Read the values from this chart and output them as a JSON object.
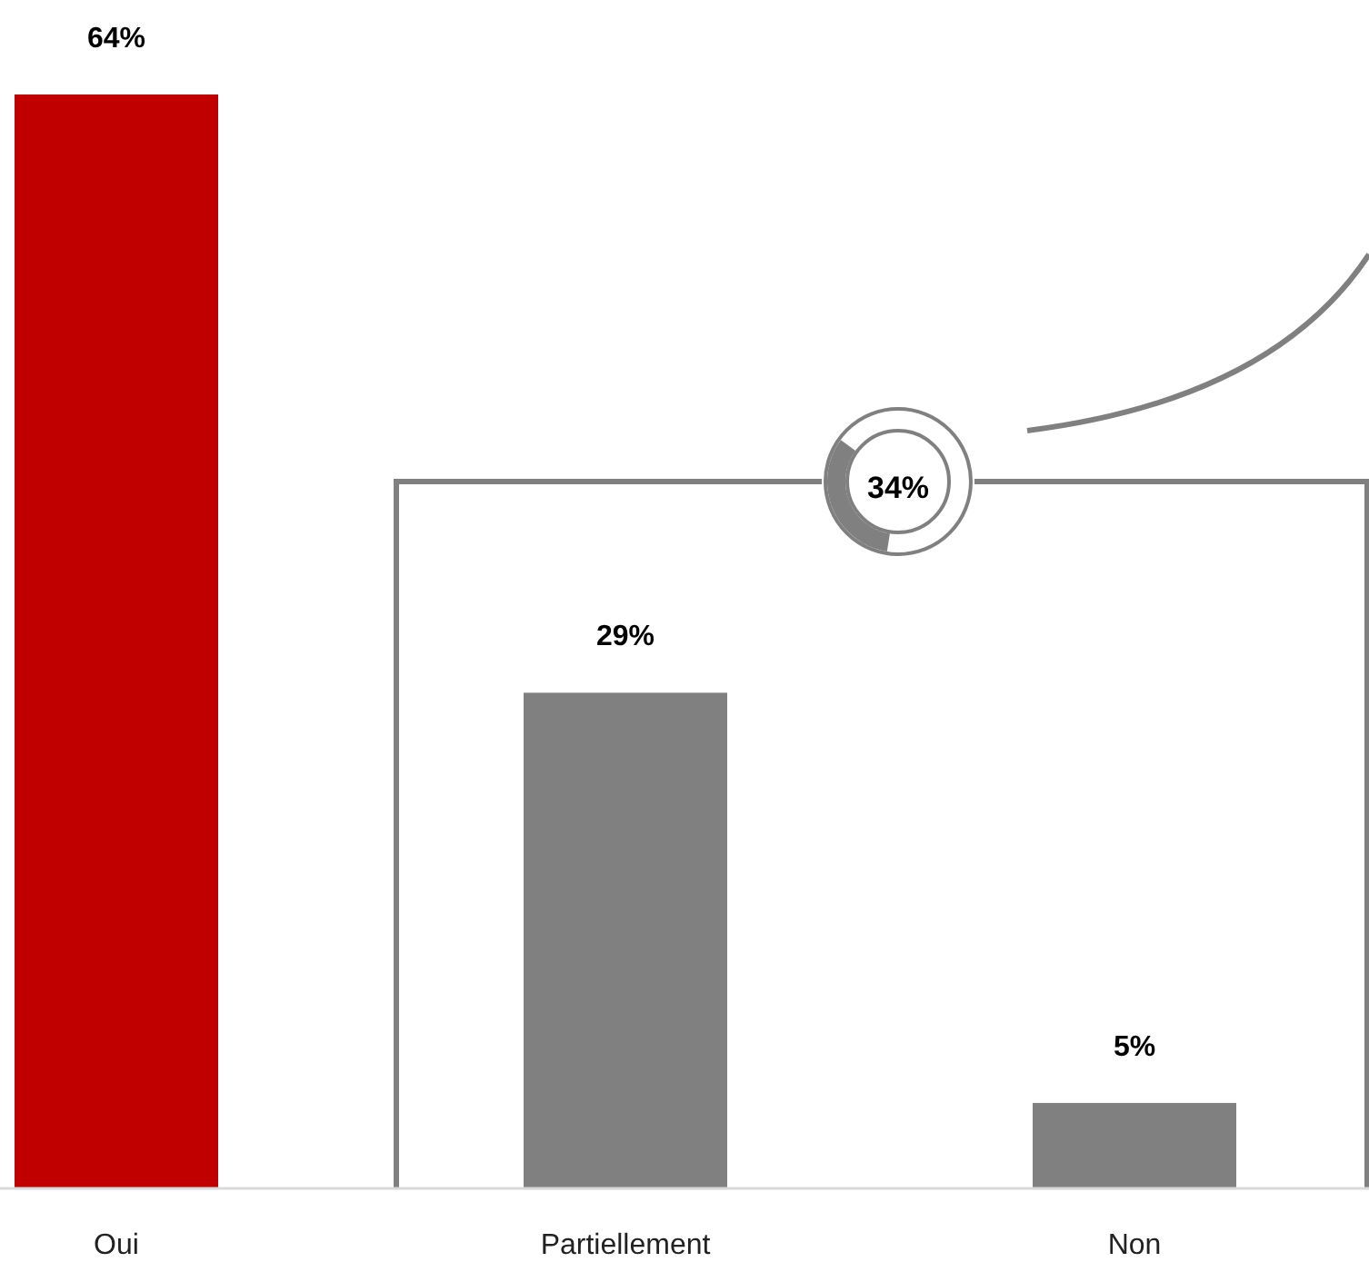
{
  "chart_data": {
    "type": "bar",
    "categories": [
      "Oui",
      "Partiellement",
      "Non"
    ],
    "values": [
      64,
      29,
      5
    ],
    "colors": [
      "#c00000",
      "#808080",
      "#808080"
    ],
    "data_labels": true,
    "value_labels": [
      "64%",
      "29%",
      "5%"
    ],
    "annotations": [
      "34%"
    ]
  }
}
